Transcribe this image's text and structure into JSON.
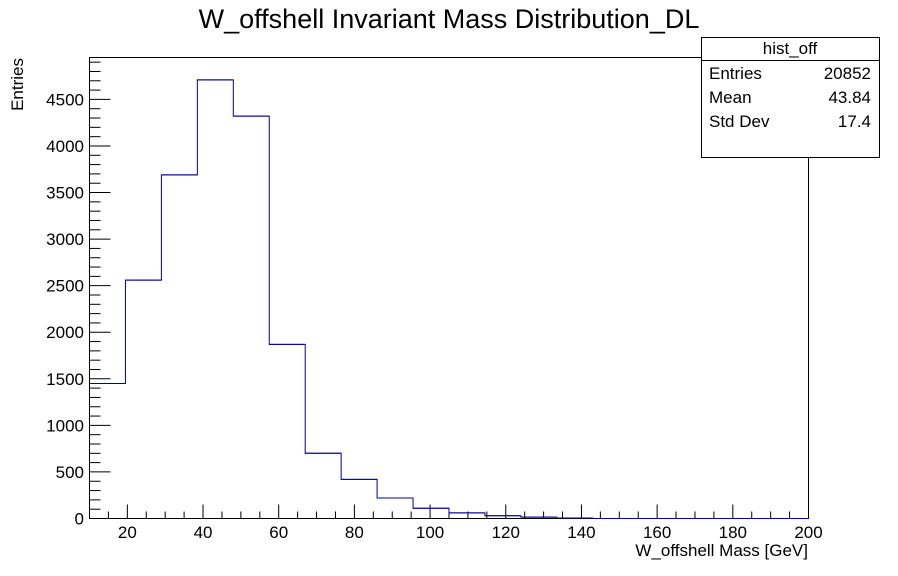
{
  "chart_data": {
    "type": "bar",
    "title": "W_offshell Invariant Mass Distribution_DL",
    "xlabel": "W_offshell Mass [GeV]",
    "ylabel": "Entries",
    "xlim": [
      10,
      200
    ],
    "ylim": [
      0,
      4950
    ],
    "x_ticks": [
      "20",
      "40",
      "60",
      "80",
      "100",
      "120",
      "140",
      "160",
      "180",
      "200"
    ],
    "y_ticks": [
      "0",
      "500",
      "1000",
      "1500",
      "2000",
      "2500",
      "3000",
      "3500",
      "4000",
      "4500"
    ],
    "bin_edges": [
      10,
      19.5,
      29,
      38.5,
      48,
      57.5,
      67,
      76.5,
      86,
      95.5,
      105,
      114.5,
      124,
      133.5,
      143,
      152.5,
      162,
      171.5,
      181,
      190.5,
      200
    ],
    "series": [
      {
        "values": [
          1450,
          2560,
          3690,
          4710,
          4320,
          1870,
          700,
          420,
          220,
          110,
          60,
          30,
          15,
          5,
          0,
          0,
          0,
          0,
          0,
          0
        ],
        "color": "#000099"
      }
    ],
    "grid": false,
    "stats_box": {
      "name": "hist_off",
      "rows": [
        {
          "label": "Entries",
          "value": "20852"
        },
        {
          "label": "Mean",
          "value": "43.84"
        },
        {
          "label": "Std Dev",
          "value": "17.4"
        }
      ]
    }
  }
}
